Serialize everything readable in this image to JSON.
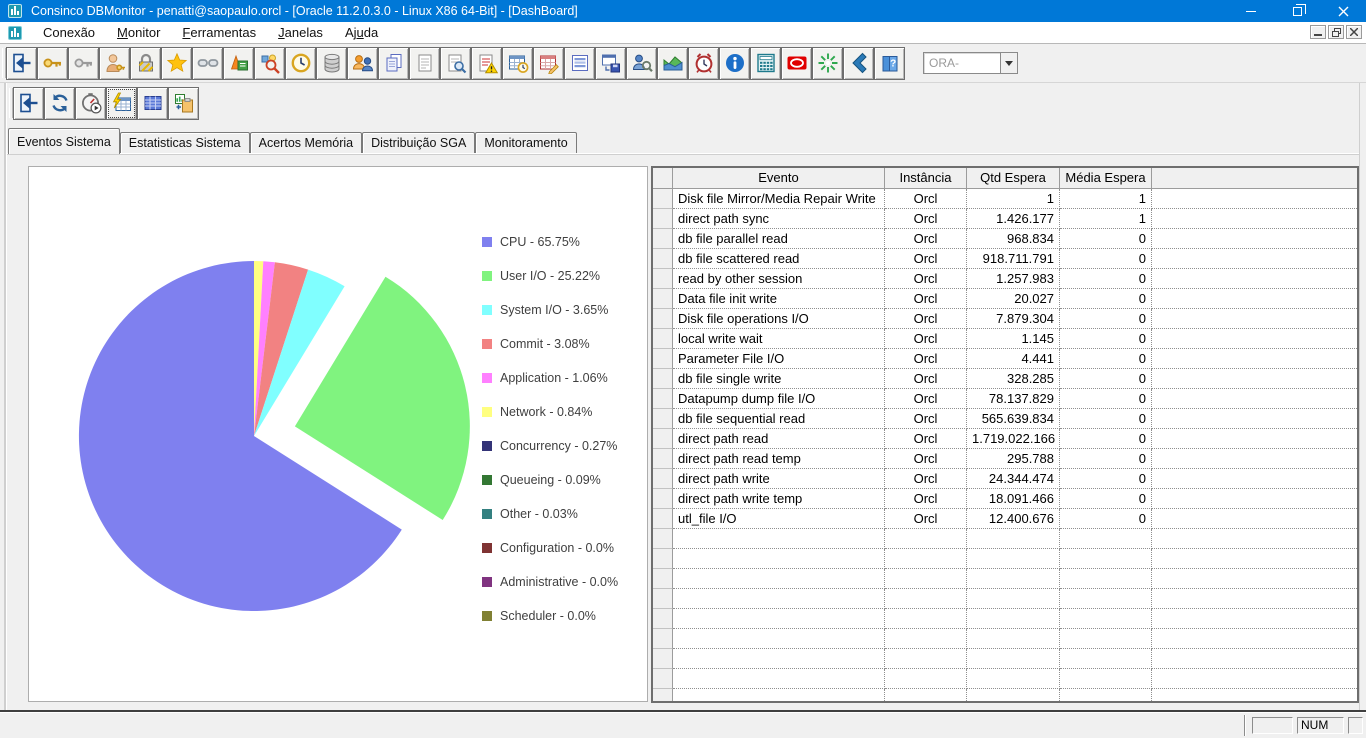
{
  "window": {
    "title": "Consinco DBMonitor - penatti@saopaulo.orcl - [Oracle 11.2.0.3.0 - Linux X86 64-Bit] - [DashBoard]",
    "controls": [
      "minimize",
      "restore",
      "close"
    ]
  },
  "menu": {
    "items": [
      {
        "label": "Conexão",
        "underline": -1
      },
      {
        "label": "Monitor",
        "underline": 0
      },
      {
        "label": "Ferramentas",
        "underline": 0
      },
      {
        "label": "Janelas",
        "underline": 0
      },
      {
        "label": "Ajuda",
        "underline": 2
      }
    ],
    "mdi_controls": [
      "minimize",
      "restore",
      "close"
    ]
  },
  "toolbar_main": {
    "buttons": [
      {
        "icon": "exit-icon",
        "name": "exit"
      },
      {
        "icon": "key-gold-icon",
        "name": "connect"
      },
      {
        "icon": "key-silver-icon",
        "name": "disconnect"
      },
      {
        "icon": "user-key-icon",
        "name": "user-credentials"
      },
      {
        "icon": "lock-icon",
        "name": "lock"
      },
      {
        "icon": "star-icon",
        "name": "favorites"
      },
      {
        "icon": "link-broken-icon",
        "name": "kill-session"
      },
      {
        "icon": "export-book-icon",
        "name": "export"
      },
      {
        "icon": "search-shapes-icon",
        "name": "object-search"
      },
      {
        "icon": "clock-icon",
        "name": "sessions-time"
      },
      {
        "icon": "database-icon",
        "name": "database"
      },
      {
        "icon": "users-chat-icon",
        "name": "sessions"
      },
      {
        "icon": "copy-pages-icon",
        "name": "copy"
      },
      {
        "icon": "document-icon",
        "name": "document"
      },
      {
        "icon": "doc-search-icon",
        "name": "document-search"
      },
      {
        "icon": "doc-warning-icon",
        "name": "alert-log"
      },
      {
        "icon": "grid-clock-icon",
        "name": "scheduled-jobs"
      },
      {
        "icon": "grid-edit-icon",
        "name": "edit-table"
      },
      {
        "icon": "form-list-icon",
        "name": "form"
      },
      {
        "icon": "window-save-icon",
        "name": "save-layout"
      },
      {
        "icon": "user-search-icon",
        "name": "user-search"
      },
      {
        "icon": "area-chart-icon",
        "name": "performance-chart"
      },
      {
        "icon": "alarm-icon",
        "name": "alerts"
      },
      {
        "icon": "info-icon",
        "name": "information"
      },
      {
        "icon": "calculator-icon",
        "name": "calculator"
      },
      {
        "icon": "oracle-icon",
        "name": "oracle"
      },
      {
        "icon": "burst-icon",
        "name": "refresh-all"
      },
      {
        "icon": "back-icon",
        "name": "back"
      },
      {
        "icon": "help-book-icon",
        "name": "help"
      }
    ],
    "combo": {
      "placeholder": "ORA-"
    }
  },
  "toolbar_child": {
    "buttons": [
      {
        "icon": "exit-icon",
        "name": "close-dashboard"
      },
      {
        "icon": "refresh-icon",
        "name": "refresh"
      },
      {
        "icon": "timer-icon",
        "name": "auto-refresh-timer"
      },
      {
        "icon": "grid-flash-icon",
        "name": "events-grid"
      },
      {
        "icon": "grid-blue-icon",
        "name": "statistics-grid"
      },
      {
        "icon": "chart-clipboard-icon",
        "name": "chart-report"
      }
    ],
    "active_index": 3
  },
  "tabs": {
    "items": [
      "Eventos Sistema",
      "Estatisticas Sistema",
      "Acertos Memória",
      "Distribuição SGA",
      "Monitoramento"
    ],
    "active_index": 0
  },
  "chart_data": {
    "type": "pie",
    "title": "",
    "legend_position": "right",
    "slices": [
      {
        "name": "CPU",
        "value": 65.75,
        "color": "#7f80ef",
        "legend_label": "CPU - 65.75%"
      },
      {
        "name": "User I/O",
        "value": 25.22,
        "color": "#80f37f",
        "legend_label": "User I/O - 25.22%",
        "exploded": true
      },
      {
        "name": "System I/O",
        "value": 3.65,
        "color": "#80ffff",
        "legend_label": "System I/O - 3.65%"
      },
      {
        "name": "Commit",
        "value": 3.08,
        "color": "#f28282",
        "legend_label": "Commit - 3.08%"
      },
      {
        "name": "Application",
        "value": 1.06,
        "color": "#ff80ff",
        "legend_label": "Application - 1.06%"
      },
      {
        "name": "Network",
        "value": 0.84,
        "color": "#ffff80",
        "legend_label": "Network - 0.84%"
      },
      {
        "name": "Concurrency",
        "value": 0.27,
        "color": "#333377",
        "legend_label": "Concurrency - 0.27%"
      },
      {
        "name": "Queueing",
        "value": 0.09,
        "color": "#337733",
        "legend_label": "Queueing - 0.09%"
      },
      {
        "name": "Other",
        "value": 0.03,
        "color": "#338080",
        "legend_label": "Other - 0.03%"
      },
      {
        "name": "Configuration",
        "value": 0.0,
        "color": "#7f3333",
        "legend_label": "Configuration - 0.0%"
      },
      {
        "name": "Administrative",
        "value": 0.0,
        "color": "#803380",
        "legend_label": "Administrative - 0.0%"
      },
      {
        "name": "Scheduler",
        "value": 0.0,
        "color": "#808033",
        "legend_label": "Scheduler - 0.0%"
      }
    ]
  },
  "table": {
    "headers": [
      "Evento",
      "Instância",
      "Qtd Espera",
      "Média Espera"
    ],
    "rows": [
      [
        "Disk file Mirror/Media Repair Write",
        "Orcl",
        "1",
        "1"
      ],
      [
        "direct path sync",
        "Orcl",
        "1.426.177",
        "1"
      ],
      [
        "db file parallel read",
        "Orcl",
        "968.834",
        "0"
      ],
      [
        "db file scattered read",
        "Orcl",
        "918.711.791",
        "0"
      ],
      [
        "read by other session",
        "Orcl",
        "1.257.983",
        "0"
      ],
      [
        "Data file init write",
        "Orcl",
        "20.027",
        "0"
      ],
      [
        "Disk file operations I/O",
        "Orcl",
        "7.879.304",
        "0"
      ],
      [
        "local write wait",
        "Orcl",
        "1.145",
        "0"
      ],
      [
        "Parameter File I/O",
        "Orcl",
        "4.441",
        "0"
      ],
      [
        "db file single write",
        "Orcl",
        "328.285",
        "0"
      ],
      [
        "Datapump dump file I/O",
        "Orcl",
        "78.137.829",
        "0"
      ],
      [
        "db file sequential read",
        "Orcl",
        "565.639.834",
        "0"
      ],
      [
        "direct path read",
        "Orcl",
        "1.719.022.166",
        "0"
      ],
      [
        "direct path read temp",
        "Orcl",
        "295.788",
        "0"
      ],
      [
        "direct path write",
        "Orcl",
        "24.344.474",
        "0"
      ],
      [
        "direct path write temp",
        "Orcl",
        "18.091.466",
        "0"
      ],
      [
        "utl_file I/O",
        "Orcl",
        "12.400.676",
        "0"
      ]
    ]
  },
  "status": {
    "num_label": "NUM"
  },
  "colors": {
    "titlebar": "#0078d7",
    "toolbar_bg": "#f0f0f0",
    "grid_line": "#8f8f8f"
  }
}
